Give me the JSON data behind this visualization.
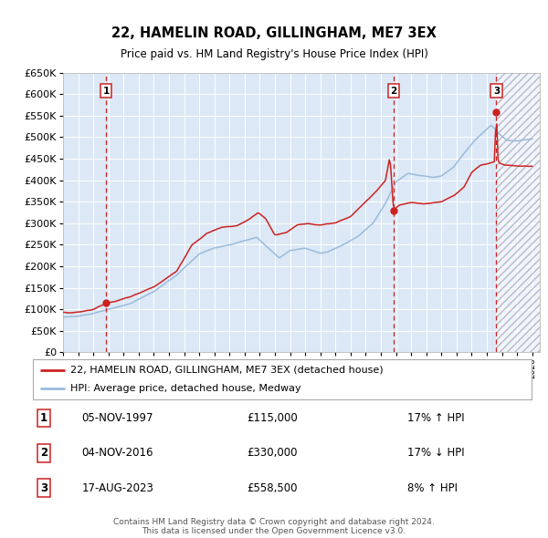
{
  "title": "22, HAMELIN ROAD, GILLINGHAM, ME7 3EX",
  "subtitle": "Price paid vs. HM Land Registry's House Price Index (HPI)",
  "hpi_label": "HPI: Average price, detached house, Medway",
  "price_label": "22, HAMELIN ROAD, GILLINGHAM, ME7 3EX (detached house)",
  "footer1": "Contains HM Land Registry data © Crown copyright and database right 2024.",
  "footer2": "This data is licensed under the Open Government Licence v3.0.",
  "transactions": [
    {
      "num": 1,
      "date": "05-NOV-1997",
      "price": 115000,
      "pct": "17%",
      "dir": "↑",
      "year_x": 1997.84
    },
    {
      "num": 2,
      "date": "04-NOV-2016",
      "price": 330000,
      "pct": "17%",
      "dir": "↓",
      "year_x": 2016.84
    },
    {
      "num": 3,
      "date": "17-AUG-2023",
      "price": 558500,
      "pct": "8%",
      "dir": "↑",
      "year_x": 2023.63
    }
  ],
  "ylim": [
    0,
    650000
  ],
  "xlim_start": 1995.0,
  "xlim_end": 2026.5,
  "bg_color": "#dce8f5",
  "grid_color": "#ffffff",
  "hpi_color": "#99bbdd",
  "price_color": "#cc2222",
  "vline_color": "#cc2222",
  "title_fontsize": 10.5,
  "subtitle_fontsize": 8.5,
  "legend_fontsize": 8,
  "table_fontsize": 8.5,
  "footer_fontsize": 6.5,
  "ytick_fontsize": 8,
  "xtick_fontsize": 6.5
}
